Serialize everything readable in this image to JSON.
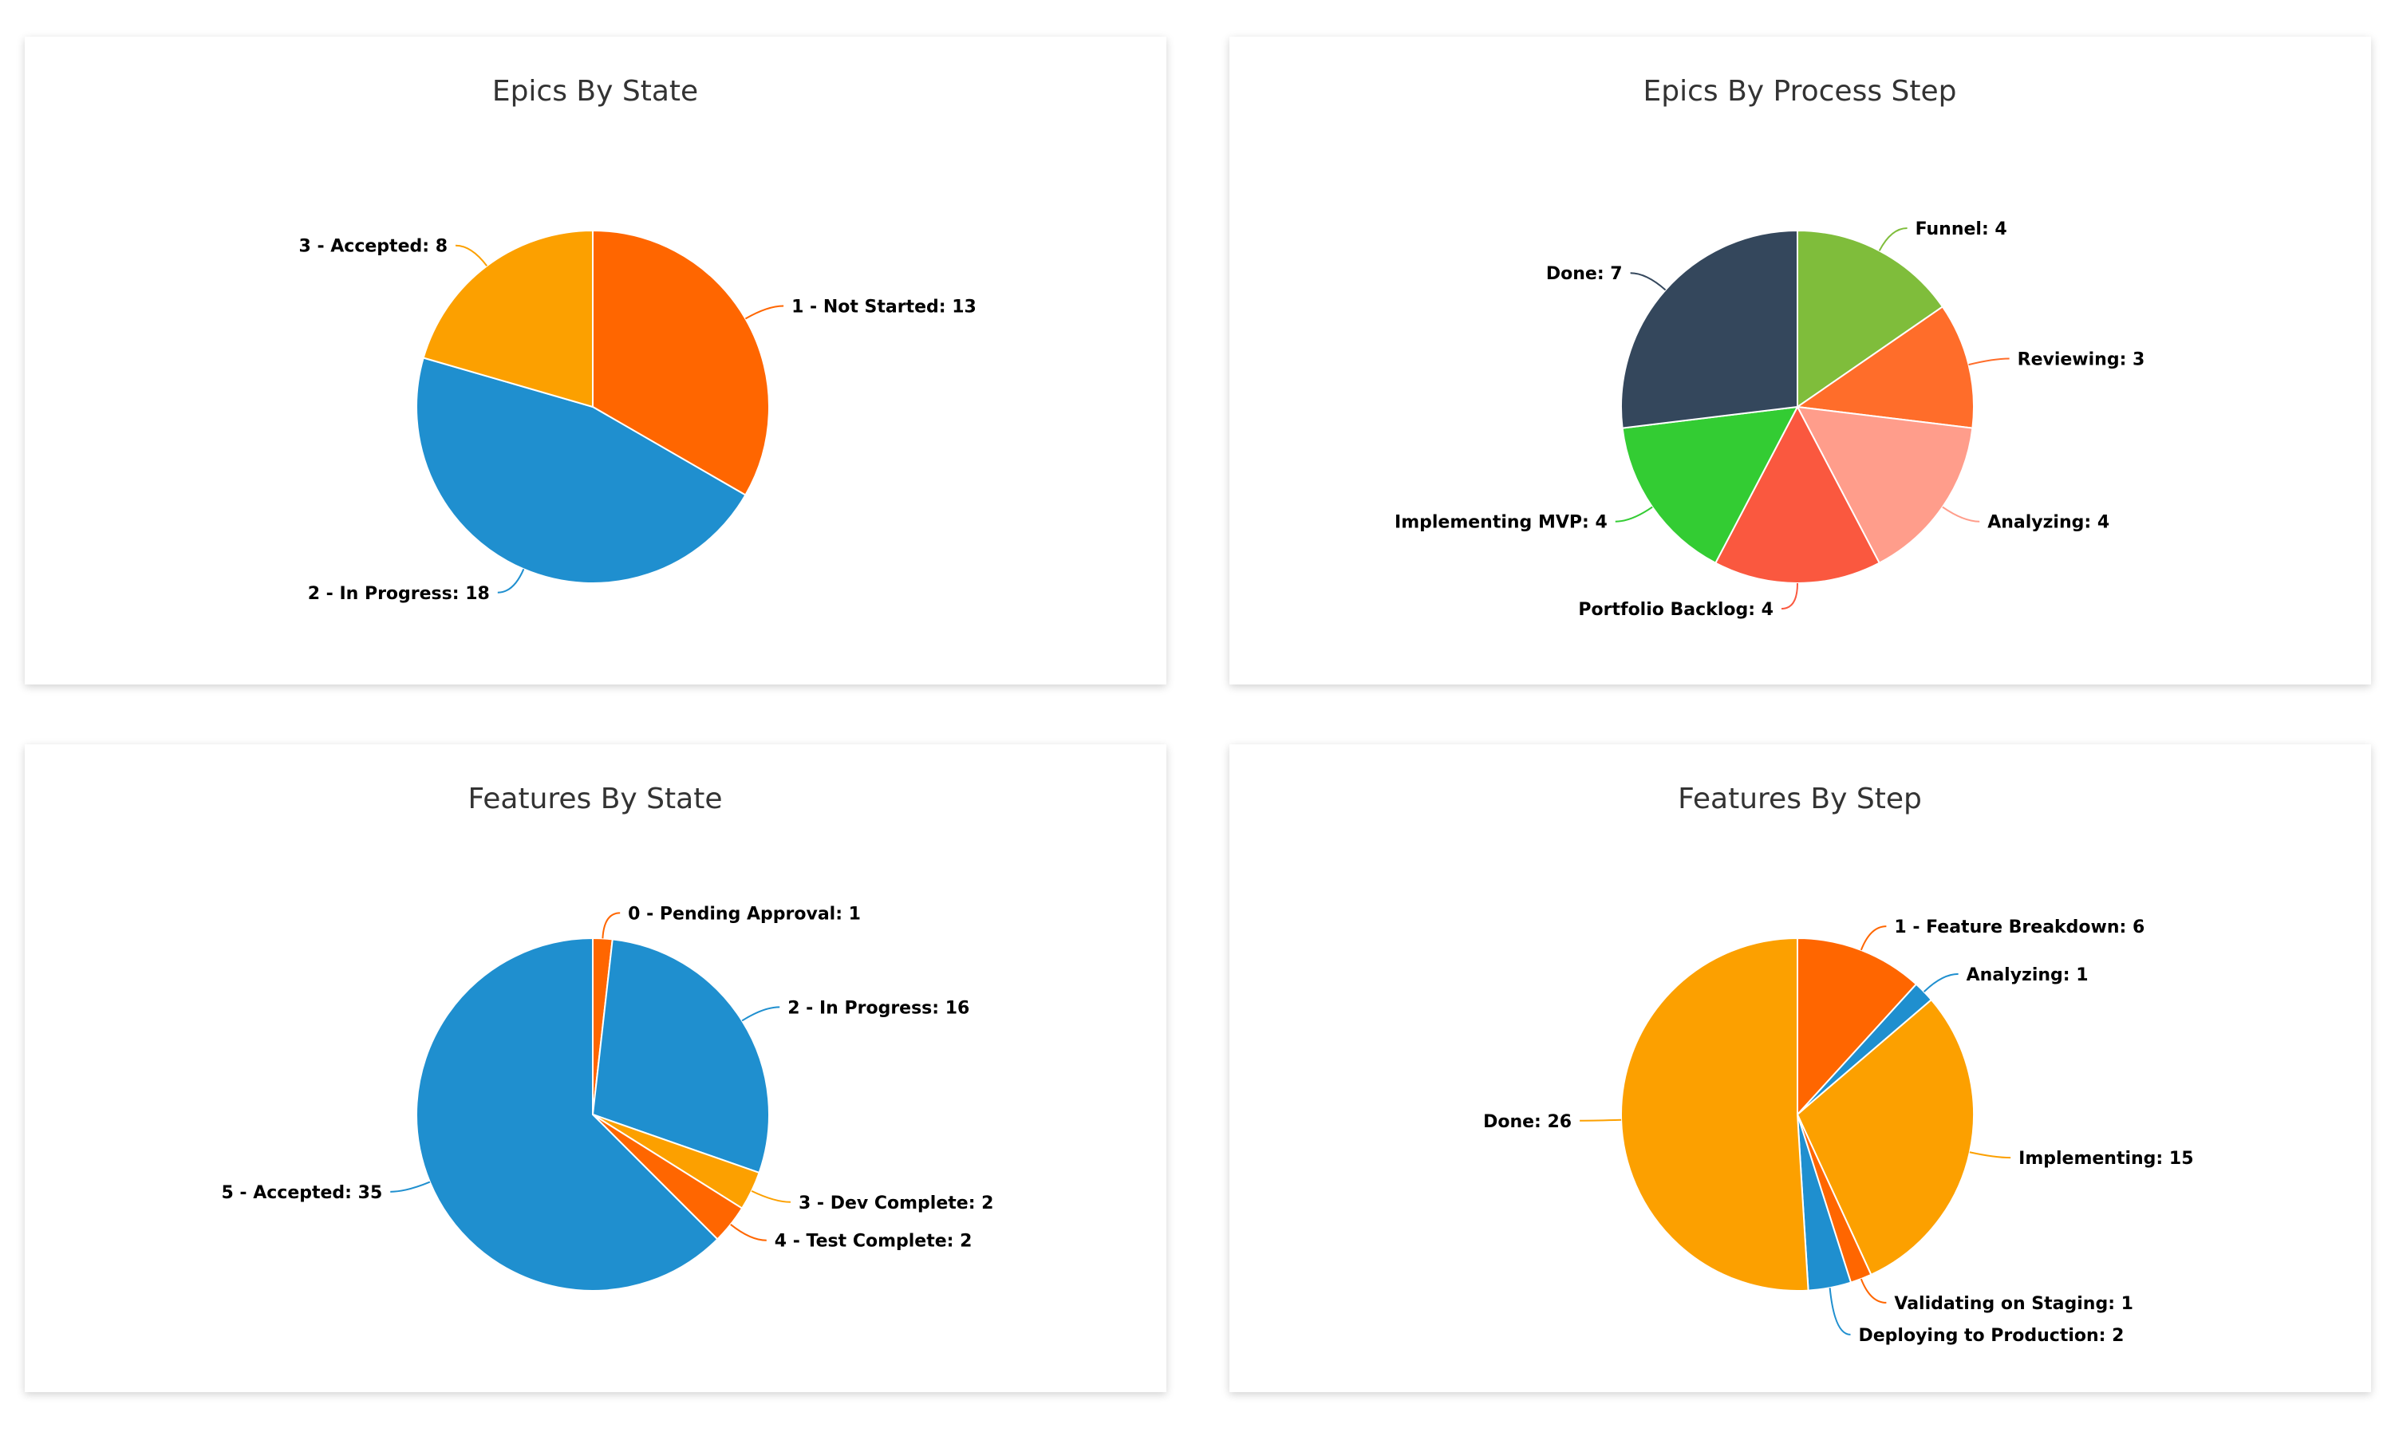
{
  "chart_data": [
    {
      "type": "pie",
      "title": "Epics By State",
      "slices": [
        {
          "label": "1 - Not Started",
          "value": 13,
          "color": "#ff6600"
        },
        {
          "label": "2 - In Progress",
          "value": 18,
          "color": "#1f8fcf"
        },
        {
          "label": "3 - Accepted",
          "value": 8,
          "color": "#fca000"
        }
      ]
    },
    {
      "type": "pie",
      "title": "Epics By Process Step",
      "slices": [
        {
          "label": "Funnel",
          "value": 4,
          "color": "#7fbd3b"
        },
        {
          "label": "Reviewing",
          "value": 3,
          "color": "#ff6d2a"
        },
        {
          "label": "Analyzing",
          "value": 4,
          "color": "#ff9d8b"
        },
        {
          "label": "Portfolio Backlog",
          "value": 4,
          "color": "#fa583f"
        },
        {
          "label": "Implementing MVP",
          "value": 4,
          "color": "#33cc33"
        },
        {
          "label": "Done",
          "value": 7,
          "color": "#34475c"
        }
      ]
    },
    {
      "type": "pie",
      "title": "Features By State",
      "slices": [
        {
          "label": "0 - Pending Approval",
          "value": 1,
          "color": "#ff6600"
        },
        {
          "label": "2 - In Progress",
          "value": 16,
          "color": "#1f8fcf"
        },
        {
          "label": "3 - Dev Complete",
          "value": 2,
          "color": "#fca000"
        },
        {
          "label": "4 - Test Complete",
          "value": 2,
          "color": "#ff6600"
        },
        {
          "label": "5 - Accepted",
          "value": 35,
          "color": "#1f8fcf"
        }
      ]
    },
    {
      "type": "pie",
      "title": "Features By Step",
      "slices": [
        {
          "label": "1 - Feature Breakdown",
          "value": 6,
          "color": "#ff6600"
        },
        {
          "label": "Analyzing",
          "value": 1,
          "color": "#1f8fcf"
        },
        {
          "label": "Implementing",
          "value": 15,
          "color": "#fca000"
        },
        {
          "label": "Validating on Staging",
          "value": 1,
          "color": "#ff6600"
        },
        {
          "label": "Deploying to Production",
          "value": 2,
          "color": "#1f8fcf"
        },
        {
          "label": "Done",
          "value": 26,
          "color": "#fca000"
        }
      ]
    }
  ]
}
